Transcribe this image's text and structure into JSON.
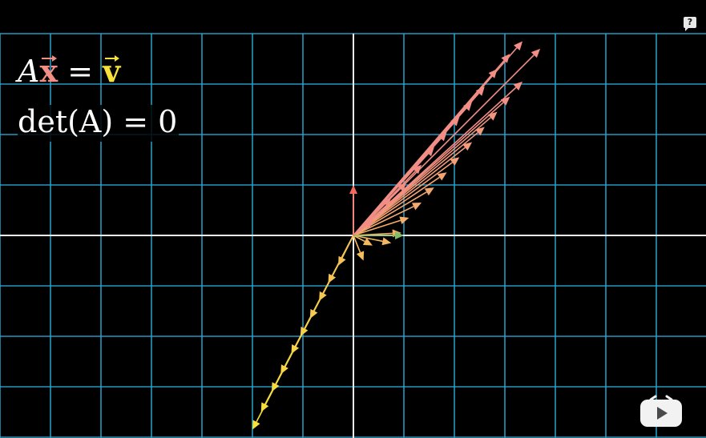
{
  "equations": {
    "line1": {
      "A": "A",
      "x": "x",
      "equals": "=",
      "v": "v"
    },
    "line2": "det(A) = 0"
  },
  "colors": {
    "background": "#000000",
    "grid": "#29a9d6",
    "axis": "#f2f2f2",
    "x_vector": "#f28e86",
    "v_vector": "#f7e13b",
    "i_hat": "#7fbf68",
    "j_hat": "#f06a5e"
  },
  "badges": {
    "help": "?"
  },
  "icons": {
    "help": "help-badge-icon",
    "player": "player-logo-icon"
  },
  "plane": {
    "x_range": [
      -7,
      7
    ],
    "y_range": [
      -4,
      4
    ],
    "basis_i_hat": [
      1,
      0
    ],
    "basis_j_hat": [
      0,
      1
    ],
    "v_line": [
      [
        -2.0,
        -3.85
      ],
      [
        -1.83,
        -3.5
      ],
      [
        -1.62,
        -3.1
      ],
      [
        -1.44,
        -2.75
      ],
      [
        -1.23,
        -2.35
      ],
      [
        -1.05,
        -2.0
      ],
      [
        -0.86,
        -1.65
      ],
      [
        -0.68,
        -1.3
      ],
      [
        -0.5,
        -0.95
      ],
      [
        -0.3,
        -0.6
      ],
      [
        0.2,
        -0.5
      ],
      [
        0.38,
        -0.2
      ],
      [
        0.75,
        -0.15
      ],
      [
        0.95,
        0.05
      ],
      [
        1.1,
        0.35
      ],
      [
        1.35,
        0.65
      ],
      [
        1.6,
        0.95
      ],
      [
        1.85,
        1.25
      ],
      [
        2.1,
        1.55
      ],
      [
        2.35,
        1.85
      ],
      [
        2.6,
        2.15
      ],
      [
        2.85,
        2.45
      ],
      [
        3.1,
        2.75
      ],
      [
        3.35,
        3.05
      ]
    ],
    "x_line": [
      [
        0.4,
        0.3
      ],
      [
        0.75,
        0.75
      ],
      [
        1.05,
        1.05
      ],
      [
        1.35,
        1.4
      ],
      [
        1.6,
        1.75
      ],
      [
        1.85,
        2.05
      ],
      [
        2.1,
        2.35
      ],
      [
        2.35,
        2.65
      ],
      [
        2.6,
        2.95
      ],
      [
        2.85,
        3.3
      ],
      [
        3.1,
        3.6
      ],
      [
        3.35,
        3.85
      ],
      [
        3.7,
        3.7
      ]
    ]
  }
}
